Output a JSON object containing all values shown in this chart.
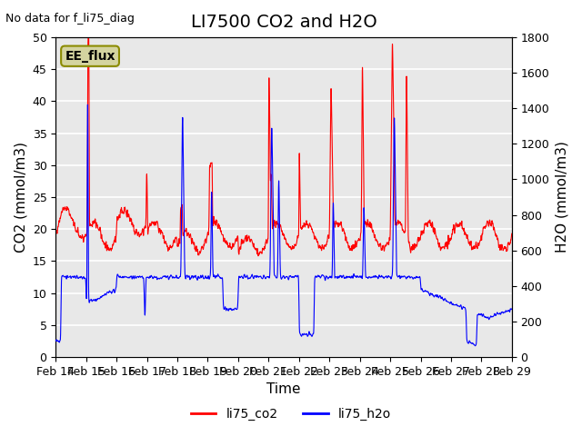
{
  "title": "LI7500 CO2 and H2O",
  "top_left_text": "No data for f_li75_diag",
  "xlabel": "Time",
  "ylabel_left": "CO2 (mmol/m3)",
  "ylabel_right": "H2O (mmol/m3)",
  "xlim_days": [
    0,
    15
  ],
  "ylim_left": [
    0,
    50
  ],
  "ylim_right": [
    0,
    1800
  ],
  "x_tick_labels": [
    "Feb 14",
    "Feb 15",
    "Feb 16",
    "Feb 17",
    "Feb 18",
    "Feb 19",
    "Feb 20",
    "Feb 21",
    "Feb 22",
    "Feb 23",
    "Feb 24",
    "Feb 25",
    "Feb 26",
    "Feb 27",
    "Feb 28",
    "Feb 29"
  ],
  "legend_labels": [
    "li75_co2",
    "li75_h2o"
  ],
  "legend_colors": [
    "red",
    "blue"
  ],
  "box_label": "EE_flux",
  "box_facecolor": "#d4d4a0",
  "box_edgecolor": "#8b8b00",
  "background_color": "#e0e0e0",
  "axes_facecolor": "#e8e8e8",
  "grid_color": "white",
  "co2_color": "red",
  "h2o_color": "blue",
  "title_fontsize": 14,
  "label_fontsize": 11,
  "tick_fontsize": 9
}
